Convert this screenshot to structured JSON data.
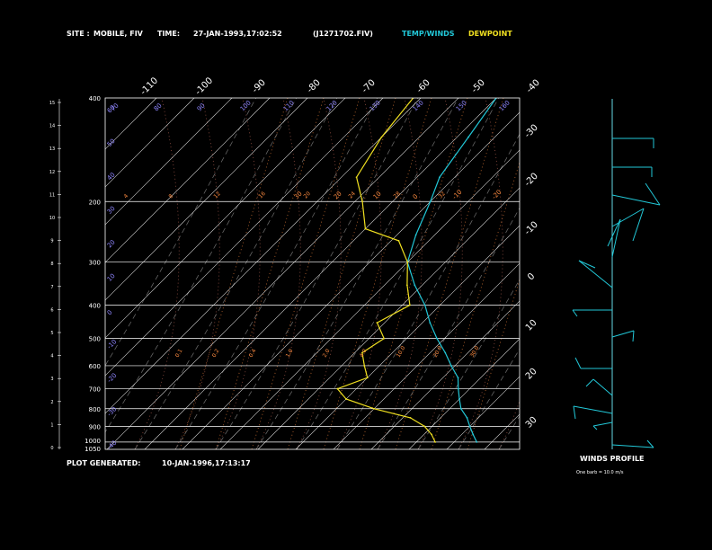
{
  "header": {
    "site_label": "SITE :",
    "site_value": "MOBILE, FIV",
    "time_label": "TIME:",
    "time_value": "27-JAN-1993,17:02:52",
    "file": "(J1271702.FIV)",
    "legend_temp": "TEMP/WINDS",
    "legend_dew": "DEWPOINT"
  },
  "footer": {
    "generated_label": "PLOT GENERATED:",
    "generated_value": "10-JAN-1996,17:13:17"
  },
  "winds": {
    "title": "WINDS PROFILE",
    "note": "One barb = 10.0 m/s"
  },
  "colors": {
    "temp": "#22c8d8",
    "dew": "#f0e020",
    "grid": "#ffffff",
    "isotherm_label": "#8f86ff",
    "mixing": "#ff8c40",
    "moist": "#d07060",
    "background": "#000000"
  },
  "chart_data": {
    "type": "line",
    "pressure_labels": [
      "400",
      "200",
      "300",
      "400",
      "500",
      "600",
      "700",
      "800",
      "900",
      "1000",
      "1050"
    ],
    "left_height_ticks": [
      "15",
      "14",
      "13",
      "12",
      "11",
      "10",
      "9",
      "8",
      "7",
      "6",
      "5",
      "4",
      "3",
      "2",
      "1",
      "0"
    ],
    "top_temp_ticks": [
      "-110",
      "-100",
      "-90",
      "-80",
      "-70",
      "-60",
      "-50",
      "-40"
    ],
    "right_temp_ticks": [
      "-30",
      "-20",
      "-10",
      "0",
      "10",
      "20",
      "30"
    ],
    "dry_adiabat_labels": [
      "60",
      "50",
      "40",
      "30",
      "20",
      "10",
      "0",
      "-10",
      "-20",
      "-30",
      "-40"
    ],
    "saturation_labels": [
      "30",
      "20",
      "10",
      "0",
      "-10",
      "-20"
    ],
    "upper_theta_labels": [
      "70",
      "80",
      "90",
      "100",
      "110",
      "120",
      "130",
      "140",
      "150",
      "160"
    ],
    "mixing_ratio_labels": [
      "4",
      "8",
      "12",
      "16",
      "20",
      "24",
      "28",
      "32"
    ],
    "lower_mixing_labels": [
      "0.1",
      "0.2",
      "0.4",
      "1.0",
      "2.0",
      "4.0",
      "10.0",
      "20.0",
      "30.0"
    ],
    "series": [
      {
        "name": "TEMP/WINDS",
        "pressure": [
          1000,
          950,
          900,
          850,
          800,
          750,
          700,
          650,
          600,
          550,
          500,
          450,
          400,
          350,
          300,
          250,
          200,
          170,
          130,
          100
        ],
        "values": [
          16,
          13,
          10,
          7,
          3,
          0,
          -3,
          -6,
          -11,
          -16,
          -22,
          -28,
          -34,
          -42,
          -50,
          -55,
          -60,
          -64,
          -67,
          -70
        ]
      },
      {
        "name": "DEWPOINT",
        "pressure": [
          1000,
          950,
          900,
          850,
          800,
          750,
          700,
          650,
          600,
          550,
          500,
          450,
          400,
          350,
          300,
          260,
          240,
          200,
          170,
          130,
          100
        ],
        "values": [
          5,
          2,
          -2,
          -8,
          -20,
          -30,
          -35,
          -30,
          -34,
          -38,
          -36,
          -42,
          -38,
          -44,
          -50,
          -58,
          -70,
          -78,
          -86,
          -90,
          -92
        ]
      }
    ]
  }
}
